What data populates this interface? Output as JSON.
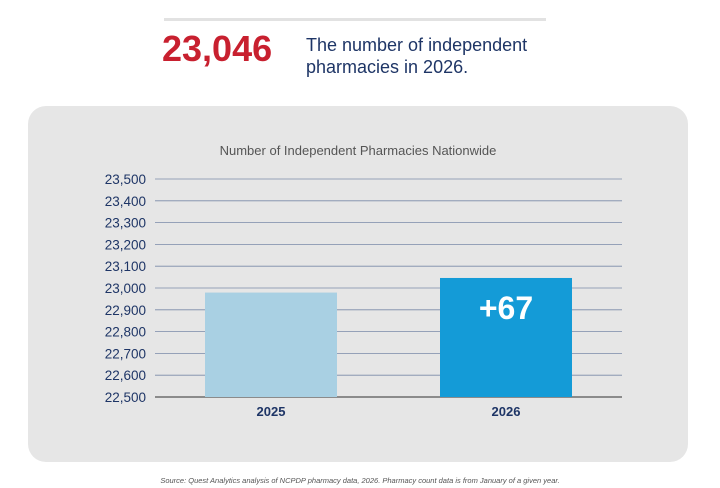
{
  "headline": {
    "value": "23,046",
    "text": "The number of independent pharmacies in 2026."
  },
  "source": "Source: Quest Analytics analysis of NCPDP pharmacy data, 2026. Pharmacy count data is from January of a given year.",
  "colors": {
    "headline": "#c8202f",
    "bar2025": "#a9d0e3",
    "bar2026": "#149bd7",
    "text": "#1e3566"
  },
  "chart_data": {
    "type": "bar",
    "title": "Number of Independent Pharmacies Nationwide",
    "categories": [
      "2025",
      "2026"
    ],
    "values": [
      22979,
      23046
    ],
    "ylim": [
      22500,
      23500
    ],
    "yticks": [
      22500,
      22600,
      22700,
      22800,
      22900,
      23000,
      23100,
      23200,
      23300,
      23400,
      23500
    ],
    "ytick_labels": [
      "22,500",
      "22,600",
      "22,700",
      "22,800",
      "22,900",
      "23,000",
      "23,100",
      "23,200",
      "23,300",
      "23,400",
      "23,500"
    ],
    "annotations": [
      {
        "category": "2026",
        "text": "+67"
      }
    ],
    "grid": true,
    "legend": "none"
  }
}
